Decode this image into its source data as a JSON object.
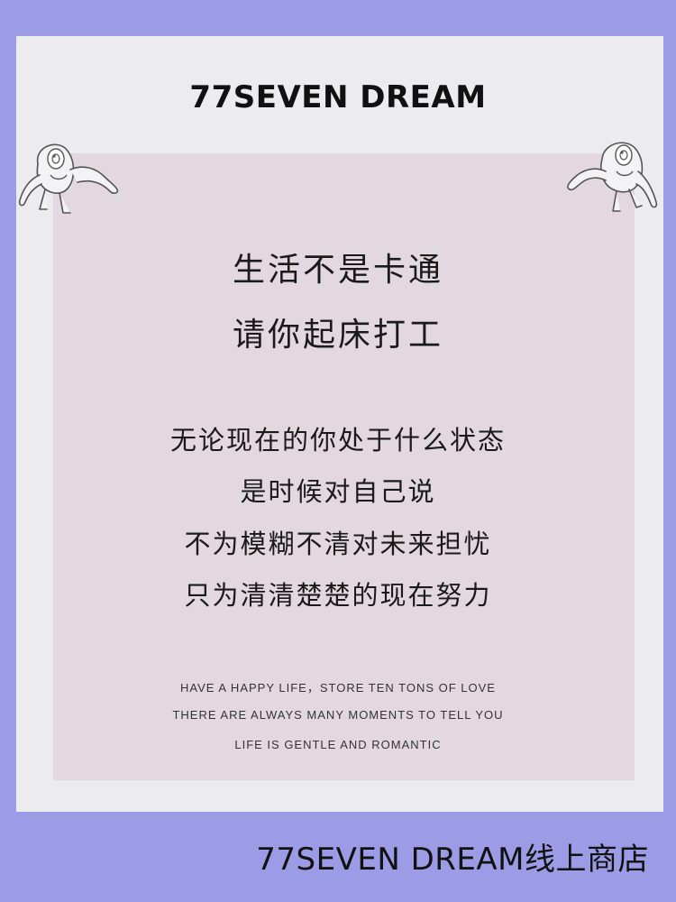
{
  "brand": {
    "title": "77SEVEN DREAM"
  },
  "headline": [
    "生活不是卡通",
    "请你起床打工"
  ],
  "body": [
    "无论现在的你处于什么状态",
    "是时候对自己说",
    "不为模糊不清对未来担忧",
    "只为清清楚楚的现在努力"
  ],
  "english": [
    "HAVE A HAPPY LIFE，STORE TEN TONS OF LOVE",
    "THERE ARE ALWAYS MANY MOMENTS TO TELL YOU",
    "LIFE IS GENTLE AND ROMANTIC"
  ],
  "footer": {
    "text": "77SEVEN DREAM线上商店"
  },
  "decorations": {
    "left": "one-eyed-monster-icon",
    "right": "one-eyed-monster-icon"
  },
  "colors": {
    "background": "#9c9be6",
    "card": "#ecebed",
    "panel": "#e3d8df",
    "text": "#1a1a1a"
  }
}
